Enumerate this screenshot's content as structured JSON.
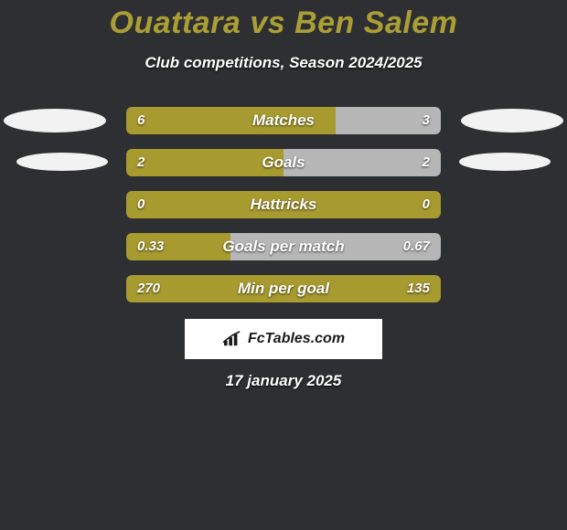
{
  "colors": {
    "background": "#2e2f33",
    "accent_left": "#a79a2f",
    "accent_right": "#b6b6b6",
    "title_color": "#aa9e34",
    "ellipse_fill": "#f2f2f2",
    "text_white": "#ffffff",
    "brandbox_bg": "#ffffff",
    "brand_text": "#1a1a1a"
  },
  "header": {
    "player1": "Ouattara",
    "vs": "vs",
    "player2": "Ben Salem",
    "subtitle": "Club competitions, Season 2024/2025"
  },
  "rows": [
    {
      "label": "Matches",
      "left": "6",
      "right": "3",
      "left_pct": 66.7,
      "right_pct": 33.3,
      "show_ellipses": true
    },
    {
      "label": "Goals",
      "left": "2",
      "right": "2",
      "left_pct": 50,
      "right_pct": 50,
      "show_ellipses": true
    },
    {
      "label": "Hattricks",
      "left": "0",
      "right": "0",
      "left_pct": 100,
      "right_pct": 0,
      "show_ellipses": false
    },
    {
      "label": "Goals per match",
      "left": "0.33",
      "right": "0.67",
      "left_pct": 33,
      "right_pct": 67,
      "show_ellipses": false
    },
    {
      "label": "Min per goal",
      "left": "270",
      "right": "135",
      "left_pct": 100,
      "right_pct": 0,
      "show_ellipses": false
    }
  ],
  "brand": {
    "text": "FcTables.com"
  },
  "date": "17 january 2025"
}
